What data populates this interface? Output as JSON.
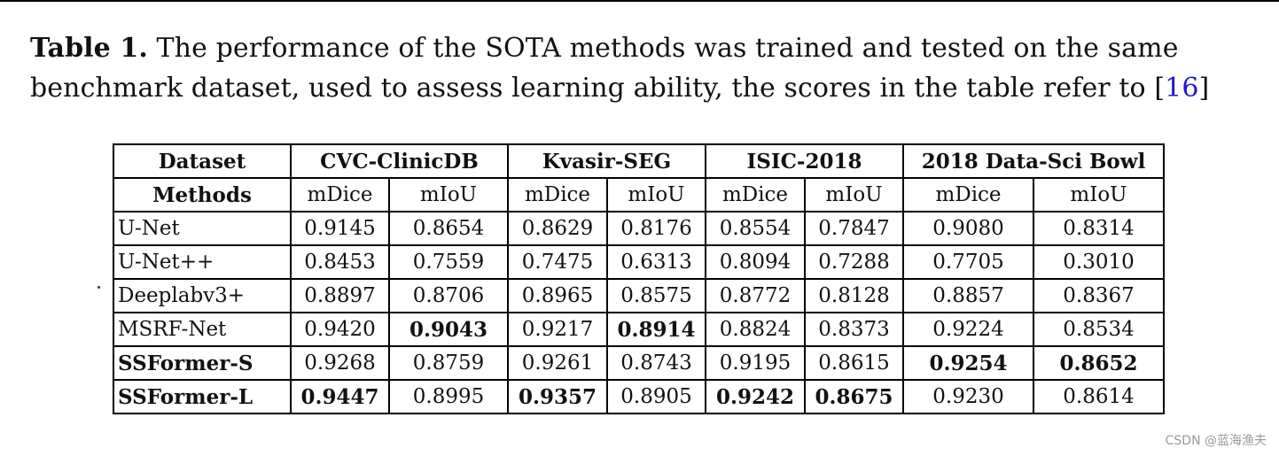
{
  "caption": {
    "label": "Table 1.",
    "line1_rest": " The performance of the SOTA methods was trained and tested on the same",
    "line2": "benchmark dataset, used to assess learning ability, the scores in the table refer to [",
    "ref": "16",
    "close": "]"
  },
  "table": {
    "dataset_label": "Dataset",
    "methods_label": "Methods",
    "datasets": [
      "CVC-ClinicDB",
      "Kvasir-SEG",
      "ISIC-2018",
      "2018 Data-Sci Bowl"
    ],
    "metrics": [
      "mDice",
      "mIoU",
      "mDice",
      "mIoU",
      "mDice",
      "mIoU",
      "mDice",
      "mIoU"
    ],
    "rows": [
      {
        "method": "U-Net",
        "method_bold": false,
        "values": [
          "0.9145",
          "0.8654",
          "0.8629",
          "0.8176",
          "0.8554",
          "0.7847",
          "0.9080",
          "0.8314"
        ],
        "bold": [
          false,
          false,
          false,
          false,
          false,
          false,
          false,
          false
        ]
      },
      {
        "method": "U-Net++",
        "method_bold": false,
        "values": [
          "0.8453",
          "0.7559",
          "0.7475",
          "0.6313",
          "0.8094",
          "0.7288",
          "0.7705",
          "0.3010"
        ],
        "bold": [
          false,
          false,
          false,
          false,
          false,
          false,
          false,
          false
        ]
      },
      {
        "method": "Deeplabv3+",
        "method_bold": false,
        "values": [
          "0.8897",
          "0.8706",
          "0.8965",
          "0.8575",
          "0.8772",
          "0.8128",
          "0.8857",
          "0.8367"
        ],
        "bold": [
          false,
          false,
          false,
          false,
          false,
          false,
          false,
          false
        ]
      },
      {
        "method": "MSRF-Net",
        "method_bold": false,
        "values": [
          "0.9420",
          "0.9043",
          "0.9217",
          "0.8914",
          "0.8824",
          "0.8373",
          "0.9224",
          "0.8534"
        ],
        "bold": [
          false,
          true,
          false,
          true,
          false,
          false,
          false,
          false
        ]
      },
      {
        "method": "SSFormer-S",
        "method_bold": true,
        "values": [
          "0.9268",
          "0.8759",
          "0.9261",
          "0.8743",
          "0.9195",
          "0.8615",
          "0.9254",
          "0.8652"
        ],
        "bold": [
          false,
          false,
          false,
          false,
          false,
          false,
          true,
          true
        ]
      },
      {
        "method": "SSFormer-L",
        "method_bold": true,
        "values": [
          "0.9447",
          "0.8995",
          "0.9357",
          "0.8905",
          "0.9242",
          "0.8675",
          "0.9230",
          "0.8614"
        ],
        "bold": [
          true,
          false,
          true,
          false,
          true,
          true,
          false,
          false
        ]
      }
    ]
  },
  "watermark": "CSDN @蓝海渔夫"
}
